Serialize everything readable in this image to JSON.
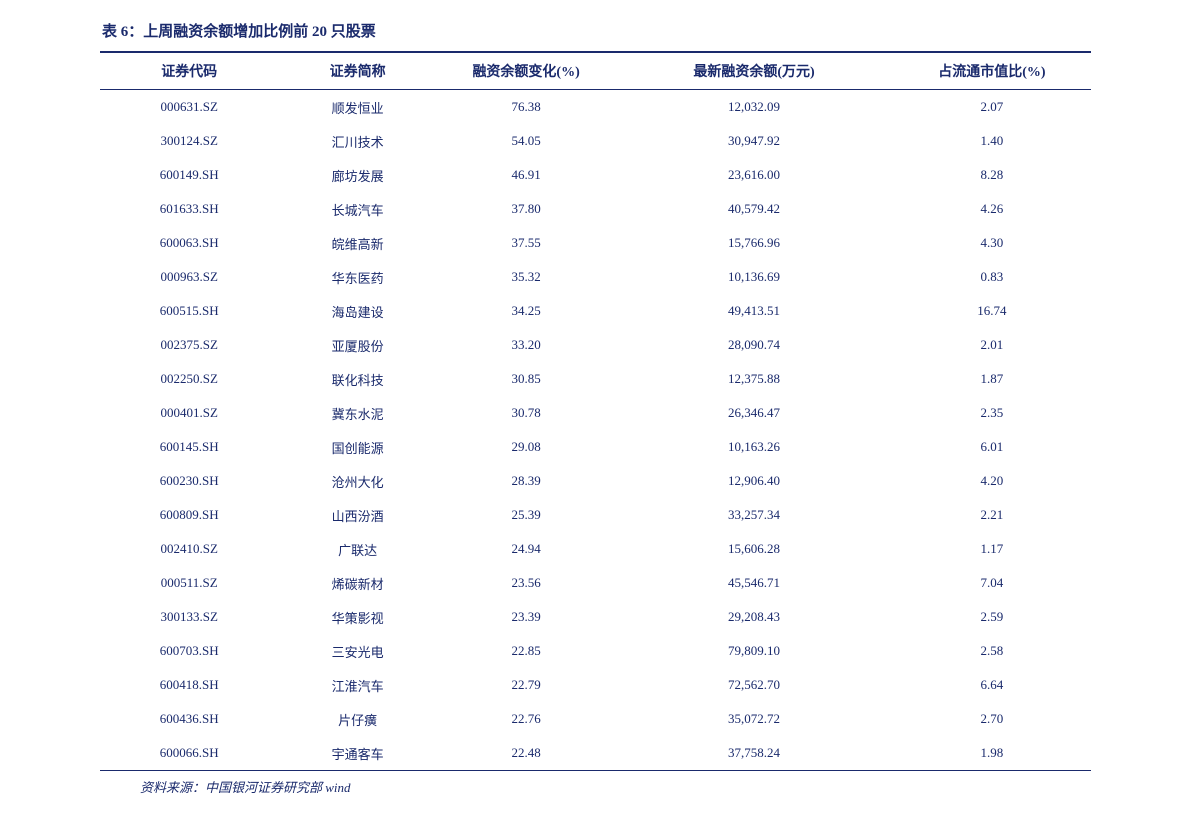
{
  "title": "表 6：上周融资余额增加比例前 20 只股票",
  "table": {
    "columns": [
      "证券代码",
      "证券简称",
      "融资余额变化(%)",
      "最新融资余额(万元)",
      "占流通市值比(%)"
    ],
    "rows": [
      [
        "000631.SZ",
        "顺发恒业",
        "76.38",
        "12,032.09",
        "2.07"
      ],
      [
        "300124.SZ",
        "汇川技术",
        "54.05",
        "30,947.92",
        "1.40"
      ],
      [
        "600149.SH",
        "廊坊发展",
        "46.91",
        "23,616.00",
        "8.28"
      ],
      [
        "601633.SH",
        "长城汽车",
        "37.80",
        "40,579.42",
        "4.26"
      ],
      [
        "600063.SH",
        "皖维高新",
        "37.55",
        "15,766.96",
        "4.30"
      ],
      [
        "000963.SZ",
        "华东医药",
        "35.32",
        "10,136.69",
        "0.83"
      ],
      [
        "600515.SH",
        "海岛建设",
        "34.25",
        "49,413.51",
        "16.74"
      ],
      [
        "002375.SZ",
        "亚厦股份",
        "33.20",
        "28,090.74",
        "2.01"
      ],
      [
        "002250.SZ",
        "联化科技",
        "30.85",
        "12,375.88",
        "1.87"
      ],
      [
        "000401.SZ",
        "冀东水泥",
        "30.78",
        "26,346.47",
        "2.35"
      ],
      [
        "600145.SH",
        "国创能源",
        "29.08",
        "10,163.26",
        "6.01"
      ],
      [
        "600230.SH",
        "沧州大化",
        "28.39",
        "12,906.40",
        "4.20"
      ],
      [
        "600809.SH",
        "山西汾酒",
        "25.39",
        "33,257.34",
        "2.21"
      ],
      [
        "002410.SZ",
        "广联达",
        "24.94",
        "15,606.28",
        "1.17"
      ],
      [
        "000511.SZ",
        "烯碳新材",
        "23.56",
        "45,546.71",
        "7.04"
      ],
      [
        "300133.SZ",
        "华策影视",
        "23.39",
        "29,208.43",
        "2.59"
      ],
      [
        "600703.SH",
        "三安光电",
        "22.85",
        "79,809.10",
        "2.58"
      ],
      [
        "600418.SH",
        "江淮汽车",
        "22.79",
        "72,562.70",
        "6.64"
      ],
      [
        "600436.SH",
        "片仔癀",
        "22.76",
        "35,072.72",
        "2.70"
      ],
      [
        "600066.SH",
        "宇通客车",
        "22.48",
        "37,758.24",
        "1.98"
      ]
    ]
  },
  "source": "资料来源：中国银河证券研究部 wind",
  "colors": {
    "primary": "#1a2a6c",
    "background": "#ffffff"
  },
  "typography": {
    "title_fontsize": 15,
    "header_fontsize": 14,
    "cell_fontsize": 13,
    "source_fontsize": 13
  }
}
